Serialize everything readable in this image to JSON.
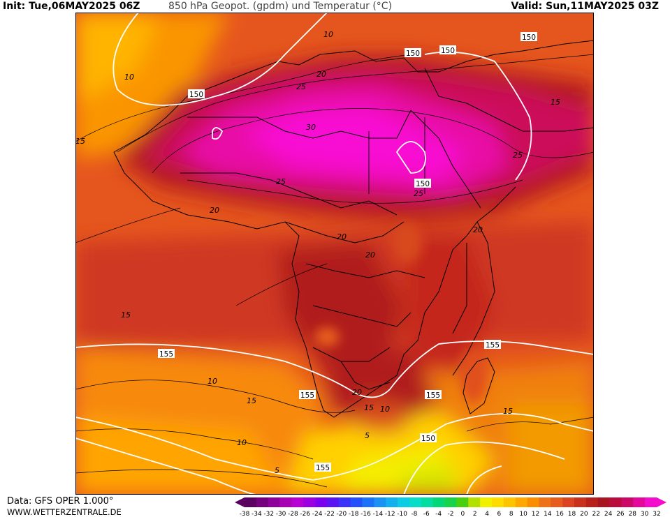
{
  "header": {
    "init": "Init: Tue,06MAY2025 06Z",
    "title": "850 hPa Geopot. (gpdm) und Temperatur (°C)",
    "valid": "Valid: Sun,11MAY2025 03Z"
  },
  "footer": {
    "data_source": "Data: GFS OPER 1.000°",
    "website": "WWW.WETTERZENTRALE.DE"
  },
  "legend": {
    "ticks": [
      "-38",
      "-34",
      "-32",
      "-30",
      "-28",
      "-26",
      "-24",
      "-22",
      "-20",
      "-18",
      "-16",
      "-14",
      "-12",
      "-10",
      "-8",
      "-6",
      "-4",
      "-2",
      "0",
      "2",
      "4",
      "6",
      "8",
      "10",
      "12",
      "14",
      "16",
      "18",
      "20",
      "22",
      "24",
      "26",
      "28",
      "30",
      "32"
    ],
    "colors": [
      "#5a0060",
      "#74007e",
      "#8f009a",
      "#a800b4",
      "#b900d2",
      "#9c00e0",
      "#7a00ee",
      "#5a14f4",
      "#3a32f8",
      "#2250fa",
      "#1a72f8",
      "#1a92f4",
      "#14b0ee",
      "#0ccce4",
      "#06dcc8",
      "#04dca0",
      "#04d876",
      "#18d24a",
      "#48d010",
      "#b2e000",
      "#f0f000",
      "#ffdc00",
      "#ffc400",
      "#ffa800",
      "#fa8e00",
      "#f07218",
      "#e65c1c",
      "#da4420",
      "#c8321c",
      "#b8201a",
      "#a81420",
      "#b80c3c",
      "#cc0866",
      "#e4089a",
      "#f40ccc"
    ]
  },
  "map_labels": {
    "temperature": [
      "10",
      "15",
      "10",
      "20",
      "25",
      "30",
      "25",
      "20",
      "20",
      "20",
      "25",
      "25",
      "20",
      "15",
      "15",
      "10",
      "15",
      "10",
      "20",
      "5",
      "10",
      "15",
      "5",
      "15"
    ],
    "geopotential": [
      "150",
      "150",
      "150",
      "150",
      "150",
      "155",
      "155",
      "155",
      "155",
      "150",
      "155"
    ]
  }
}
